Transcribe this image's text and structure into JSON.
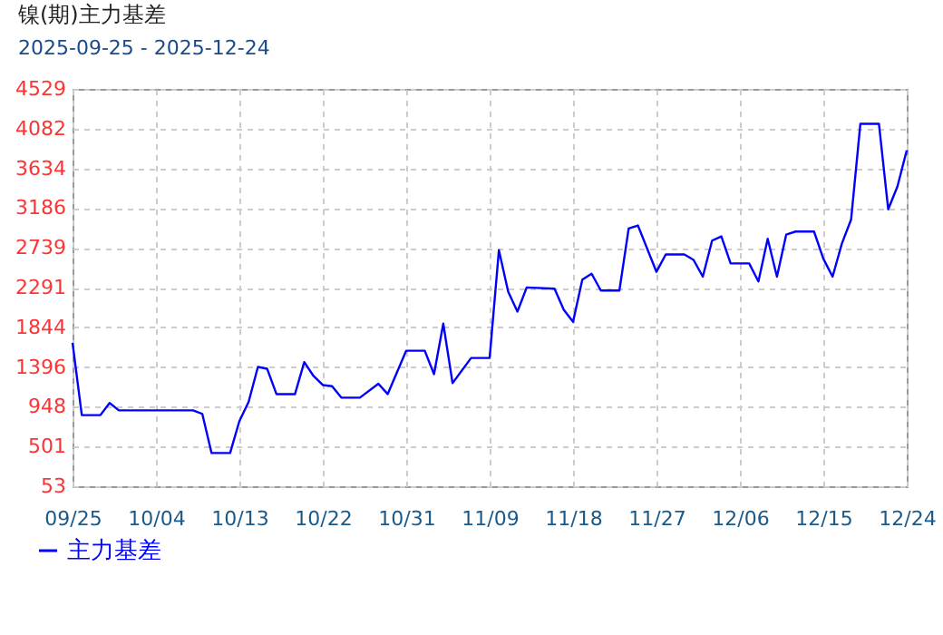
{
  "chart_data": {
    "type": "line",
    "title": "镍(期)主力基差",
    "subtitle": "2025-09-25 - 2025-12-24",
    "x": [
      "2025-09-25",
      "2025-09-26",
      "2025-09-28",
      "2025-09-29",
      "2025-09-30",
      "2025-10-08",
      "2025-10-09",
      "2025-10-10",
      "2025-10-12",
      "2025-10-13",
      "2025-10-14",
      "2025-10-15",
      "2025-10-16",
      "2025-10-17",
      "2025-10-19",
      "2025-10-20",
      "2025-10-21",
      "2025-10-22",
      "2025-10-23",
      "2025-10-24",
      "2025-10-26",
      "2025-10-28",
      "2025-10-29",
      "2025-10-31",
      "2025-11-02",
      "2025-11-03",
      "2025-11-04",
      "2025-11-05",
      "2025-11-07",
      "2025-11-09",
      "2025-11-10",
      "2025-11-11",
      "2025-11-12",
      "2025-11-13",
      "2025-11-16",
      "2025-11-17",
      "2025-11-18",
      "2025-11-19",
      "2025-11-20",
      "2025-11-21",
      "2025-11-23",
      "2025-11-24",
      "2025-11-25",
      "2025-11-27",
      "2025-11-28",
      "2025-11-30",
      "2025-12-01",
      "2025-12-02",
      "2025-12-03",
      "2025-12-04",
      "2025-12-05",
      "2025-12-07",
      "2025-12-08",
      "2025-12-09",
      "2025-12-10",
      "2025-12-11",
      "2025-12-12",
      "2025-12-14",
      "2025-12-15",
      "2025-12-16",
      "2025-12-17",
      "2025-12-18",
      "2025-12-19",
      "2025-12-21",
      "2025-12-22",
      "2025-12-23",
      "2025-12-24"
    ],
    "series": [
      {
        "name": "主力基差",
        "color": "#0000ff",
        "values": [
          1668,
          854,
          854,
          990,
          908,
          908,
          868,
          427,
          427,
          786,
          1003,
          1397,
          1376,
          1091,
          1091,
          1451,
          1295,
          1193,
          1180,
          1051,
          1051,
          1207,
          1091,
          1580,
          1580,
          1315,
          1885,
          1214,
          1498,
          1498,
          2712,
          2244,
          2020,
          2292,
          2278,
          2041,
          1905,
          2380,
          2447,
          2258,
          2258,
          2956,
          2990,
          2468,
          2664,
          2664,
          2603,
          2414,
          2820,
          2868,
          2563,
          2563,
          2360,
          2841,
          2414,
          2888,
          2922,
          2922,
          2617,
          2414,
          2786,
          3058,
          4136,
          4136,
          3173,
          3431,
          3837
        ]
      }
    ],
    "xlim": [
      "2025-09-25",
      "2025-12-24"
    ],
    "xticks": [
      {
        "value": "2025-09-25",
        "label": "09/25"
      },
      {
        "value": "2025-10-04",
        "label": "10/04"
      },
      {
        "value": "2025-10-13",
        "label": "10/13"
      },
      {
        "value": "2025-10-22",
        "label": "10/22"
      },
      {
        "value": "2025-10-31",
        "label": "10/31"
      },
      {
        "value": "2025-11-09",
        "label": "11/09"
      },
      {
        "value": "2025-11-18",
        "label": "11/18"
      },
      {
        "value": "2025-11-27",
        "label": "11/27"
      },
      {
        "value": "2025-12-06",
        "label": "12/06"
      },
      {
        "value": "2025-12-15",
        "label": "12/15"
      },
      {
        "value": "2025-12-24",
        "label": "12/24"
      }
    ],
    "ylim": [
      53,
      4529
    ],
    "yticks": [
      53,
      501,
      948,
      1396,
      1844,
      2291,
      2739,
      3186,
      3634,
      4082,
      4529
    ],
    "grid": true,
    "legend": "bottom left",
    "marker": "none",
    "line_style": "solid"
  }
}
